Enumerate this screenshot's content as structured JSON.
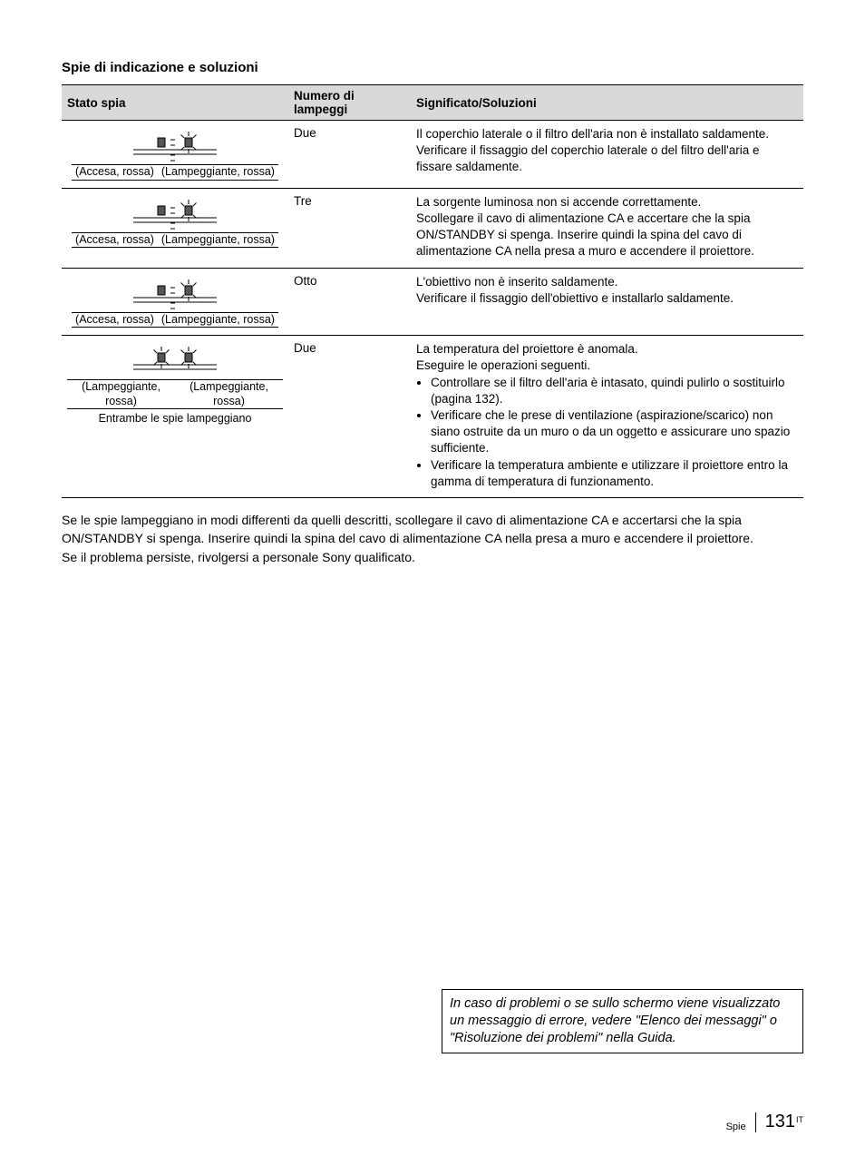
{
  "section_title": "Spie di indicazione e soluzioni",
  "table": {
    "headers": {
      "c1": "Stato spia",
      "c2": "Numero di lampeggi",
      "c3": "Significato/Soluzioni"
    },
    "rows": [
      {
        "icon_type": "one_blink",
        "label_left": "(Accesa, rossa)",
        "label_right": "(Lampeggiante, rossa)",
        "caption": "",
        "count": "Due",
        "solution_text": "Il coperchio laterale o il filtro dell'aria non è installato saldamente.\nVerificare il fissaggio del coperchio laterale o del filtro dell'aria e fissare saldamente.",
        "bullets": []
      },
      {
        "icon_type": "one_blink",
        "label_left": "(Accesa, rossa)",
        "label_right": "(Lampeggiante, rossa)",
        "caption": "",
        "count": "Tre",
        "solution_text": "La sorgente luminosa non si accende correttamente.\nScollegare il cavo di alimentazione CA e accertare che la spia ON/STANDBY si spenga. Inserire quindi la spina del cavo di alimentazione CA nella presa a muro e accendere il proiettore.",
        "bullets": []
      },
      {
        "icon_type": "one_blink",
        "label_left": "(Accesa, rossa)",
        "label_right": "(Lampeggiante, rossa)",
        "caption": "",
        "count": "Otto",
        "solution_text": "L'obiettivo non è inserito saldamente.\nVerificare il fissaggio dell'obiettivo e installarlo saldamente.",
        "bullets": []
      },
      {
        "icon_type": "both_blink",
        "label_left": "(Lampeggiante, rossa)",
        "label_right": "(Lampeggiante, rossa)",
        "caption": "Entrambe le spie lampeggiano",
        "count": "Due",
        "solution_text": "La temperatura del proiettore è anomala.\nEseguire le operazioni seguenti.",
        "bullets": [
          "Controllare se il filtro dell'aria è intasato, quindi pulirlo o sostituirlo (pagina 132).",
          "Verificare che le prese di ventilazione (aspirazione/scarico) non siano ostruite da un muro o da un oggetto e assicurare uno spazio sufficiente.",
          "Verificare la temperatura ambiente e utilizzare il proiettore entro la gamma di temperatura di funzionamento."
        ]
      }
    ]
  },
  "body_paragraph_1": "Se le spie lampeggiano in modi differenti da quelli descritti, scollegare il cavo di alimentazione CA e accertarsi che la spia ON/STANDBY si spenga. Inserire quindi la spina del cavo di alimentazione CA nella presa a muro e accendere il proiettore.",
  "body_paragraph_2": "Se il problema persiste, rivolgersi a personale Sony qualificato.",
  "note_box": "In caso di problemi o se sullo schermo viene visualizzato un messaggio di errore, vedere \"Elenco dei messaggi\" o \"Risoluzione dei problemi\" nella Guida.",
  "footer": {
    "section": "Spie",
    "page": "131",
    "lang": "IT"
  },
  "colors": {
    "header_bg": "#d9d9d9",
    "text": "#000000",
    "bg": "#ffffff"
  }
}
